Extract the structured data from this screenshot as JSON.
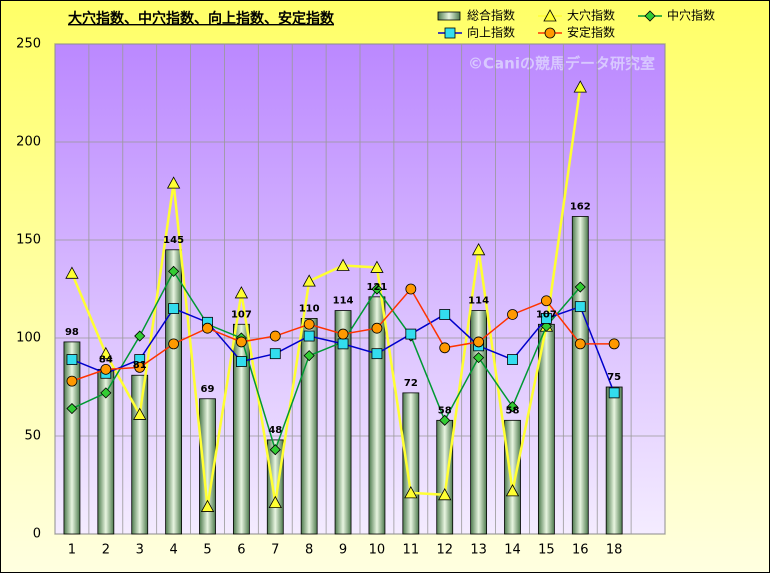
{
  "chart_data": {
    "type": "bar",
    "title": "大穴指数、中穴指数、向上指数、安定指数",
    "annotation": "©Caniの競馬データ研究室",
    "categories": [
      "1",
      "2",
      "3",
      "4",
      "5",
      "6",
      "7",
      "8",
      "9",
      "10",
      "11",
      "12",
      "13",
      "14",
      "15",
      "16",
      "18"
    ],
    "ylim": [
      0,
      250
    ],
    "yticks": [
      0,
      50,
      100,
      150,
      200,
      250
    ],
    "grid": true,
    "series": [
      {
        "name": "総合指数",
        "type": "bar",
        "color": "#6f9a6f",
        "values": [
          98,
          84,
          81,
          145,
          69,
          107,
          48,
          110,
          114,
          121,
          72,
          58,
          114,
          58,
          107,
          162,
          75
        ]
      },
      {
        "name": "大穴指数",
        "type": "line",
        "marker": "triangle",
        "color": "#ffff33",
        "values": [
          133,
          92,
          61,
          179,
          14,
          123,
          16,
          129,
          137,
          136,
          21,
          20,
          145,
          22,
          106,
          228,
          null
        ]
      },
      {
        "name": "中穴指数",
        "type": "line",
        "marker": "diamond",
        "color": "#009933",
        "values": [
          64,
          72,
          101,
          134,
          107,
          100,
          43,
          91,
          98,
          125,
          101,
          58,
          90,
          65,
          106,
          126,
          null
        ]
      },
      {
        "name": "向上指数",
        "type": "line",
        "marker": "square",
        "color": "#0000cc",
        "values": [
          89,
          82,
          89,
          115,
          108,
          88,
          92,
          101,
          97,
          92,
          102,
          112,
          96,
          89,
          110,
          116,
          72
        ]
      },
      {
        "name": "安定指数",
        "type": "line",
        "marker": "circle",
        "color": "#ff3300",
        "values": [
          78,
          84,
          85,
          97,
          105,
          98,
          101,
          107,
          102,
          105,
          125,
          95,
          98,
          112,
          119,
          97,
          97
        ]
      }
    ]
  }
}
